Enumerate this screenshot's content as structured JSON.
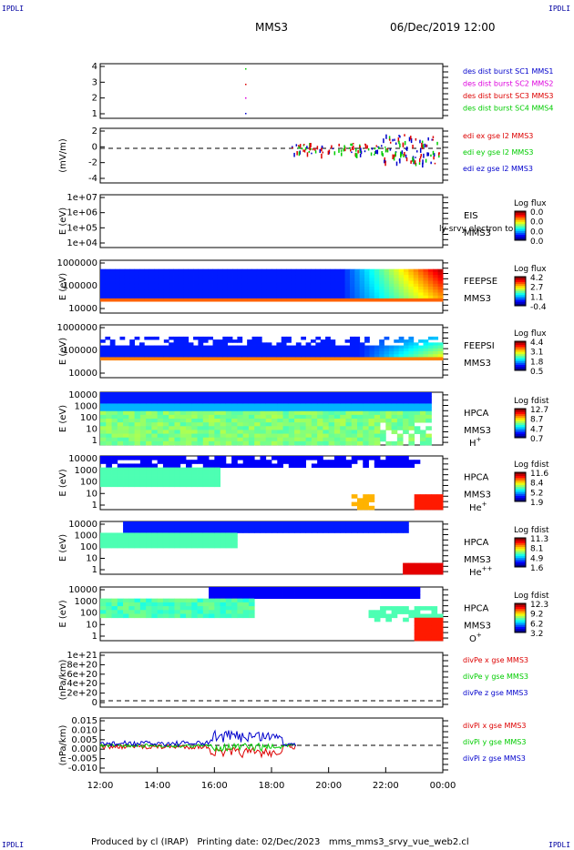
{
  "corner_label": "IPDLI",
  "header": {
    "mission": "MMS3",
    "datetime": "06/Dec/2019 12:00"
  },
  "footer": {
    "text": "Produced by cl (IRAP)   Printing date: 02/Dec/2023   mms_mms3_srvy_vue_web2.cl"
  },
  "colors": {
    "red": "#dd0000",
    "green": "#00cc00",
    "blue": "#0000cc",
    "magenta": "#dd00dd"
  },
  "chart_data": {
    "type": "multi-panel time series",
    "x_ticks": [
      "12:00",
      "14:00",
      "16:00",
      "18:00",
      "20:00",
      "22:00",
      "00:00"
    ],
    "panels": [
      {
        "id": "dist",
        "ylabel": "",
        "yticks": [
          "4",
          "3",
          "2",
          "1"
        ],
        "legend": [
          {
            "t": "des dist burst SC1 MMS1",
            "c": "#0000cc"
          },
          {
            "t": "des dist burst SC2 MMS2",
            "c": "#dd00dd"
          },
          {
            "t": "des dist burst SC3 MMS3",
            "c": "#dd0000"
          },
          {
            "t": "des dist burst SC4 MMS4",
            "c": "#00cc00"
          }
        ]
      },
      {
        "id": "edi",
        "ylabel": "(mV/m)",
        "yticks": [
          "2",
          "0",
          "-2",
          "-4"
        ],
        "legend": [
          {
            "t": "edi ex gse l2 MMS3",
            "c": "#dd0000"
          },
          {
            "t": "edi ey gse l2 MMS3",
            "c": "#00cc00"
          },
          {
            "t": "edi ez gse l2 MMS3",
            "c": "#0000cc"
          }
        ]
      },
      {
        "id": "eis",
        "ylabel": "E (eV)",
        "yticks": [
          "1e+07",
          "1e+06",
          "1e+05",
          "1e+04"
        ],
        "labels": [
          "EIS",
          "MMS3"
        ],
        "overlay": "ly srvy electron to",
        "cbar": {
          "title": "Log flux",
          "ticks": [
            "0.0",
            "0.0",
            "0.0",
            "0.0"
          ]
        }
      },
      {
        "id": "feepse",
        "ylabel": "E (eV)",
        "yticks": [
          "1000000",
          "100000",
          "10000"
        ],
        "labels": [
          "FEEPSE",
          "MMS3"
        ],
        "cbar": {
          "title": "Log flux",
          "ticks": [
            "4.2",
            "2.7",
            "1.1",
            "-0.4"
          ]
        }
      },
      {
        "id": "feepsi",
        "ylabel": "E (eV)",
        "yticks": [
          "1000000",
          "100000",
          "10000"
        ],
        "labels": [
          "FEEPSI",
          "MMS3"
        ],
        "cbar": {
          "title": "Log flux",
          "ticks": [
            "4.4",
            "3.1",
            "1.8",
            "0.5"
          ]
        }
      },
      {
        "id": "hpca_h",
        "ylabel": "E (eV)",
        "yticks": [
          "10000",
          "1000",
          "100",
          "10",
          "1"
        ],
        "labels": [
          "HPCA",
          "MMS3"
        ],
        "species": "H",
        "sup": "+",
        "cbar": {
          "title": "Log fdist",
          "ticks": [
            "12.7",
            "8.7",
            "4.7",
            "0.7"
          ]
        }
      },
      {
        "id": "hpca_he",
        "ylabel": "E (eV)",
        "yticks": [
          "10000",
          "1000",
          "100",
          "10",
          "1"
        ],
        "labels": [
          "HPCA",
          "MMS3"
        ],
        "species": "He",
        "sup": "+",
        "cbar": {
          "title": "Log fdist",
          "ticks": [
            "11.6",
            "8.4",
            "5.2",
            "1.9"
          ]
        }
      },
      {
        "id": "hpca_hepp",
        "ylabel": "E (eV)",
        "yticks": [
          "10000",
          "1000",
          "100",
          "10",
          "1"
        ],
        "labels": [
          "HPCA",
          "MMS3"
        ],
        "species": "He",
        "sup": "++",
        "cbar": {
          "title": "Log fdist",
          "ticks": [
            "11.3",
            "8.1",
            "4.9",
            "1.6"
          ]
        }
      },
      {
        "id": "hpca_o",
        "ylabel": "E (eV)",
        "yticks": [
          "10000",
          "1000",
          "100",
          "10",
          "1"
        ],
        "labels": [
          "HPCA",
          "MMS3"
        ],
        "species": "O",
        "sup": "+",
        "cbar": {
          "title": "Log fdist",
          "ticks": [
            "12.3",
            "9.2",
            "6.2",
            "3.2"
          ]
        }
      },
      {
        "id": "divpe",
        "ylabel": "(nPa/km)",
        "yticks": [
          "1e+21",
          "8e+20",
          "6e+20",
          "4e+20",
          "2e+20",
          "0"
        ],
        "legend": [
          {
            "t": "divPe x gse MMS3",
            "c": "#dd0000"
          },
          {
            "t": "divPe y gse MMS3",
            "c": "#00cc00"
          },
          {
            "t": "divPe z gse MMS3",
            "c": "#0000cc"
          }
        ]
      },
      {
        "id": "divpi",
        "ylabel": "(nPa/km)",
        "yticks": [
          "0.015",
          "0.010",
          "0.005",
          "0.000",
          "-0.005",
          "-0.010"
        ],
        "legend": [
          {
            "t": "divPi x gse MMS3",
            "c": "#dd0000"
          },
          {
            "t": "divPi y gse MMS3",
            "c": "#00cc00"
          },
          {
            "t": "divPi z gse MMS3",
            "c": "#0000cc"
          }
        ]
      }
    ]
  }
}
